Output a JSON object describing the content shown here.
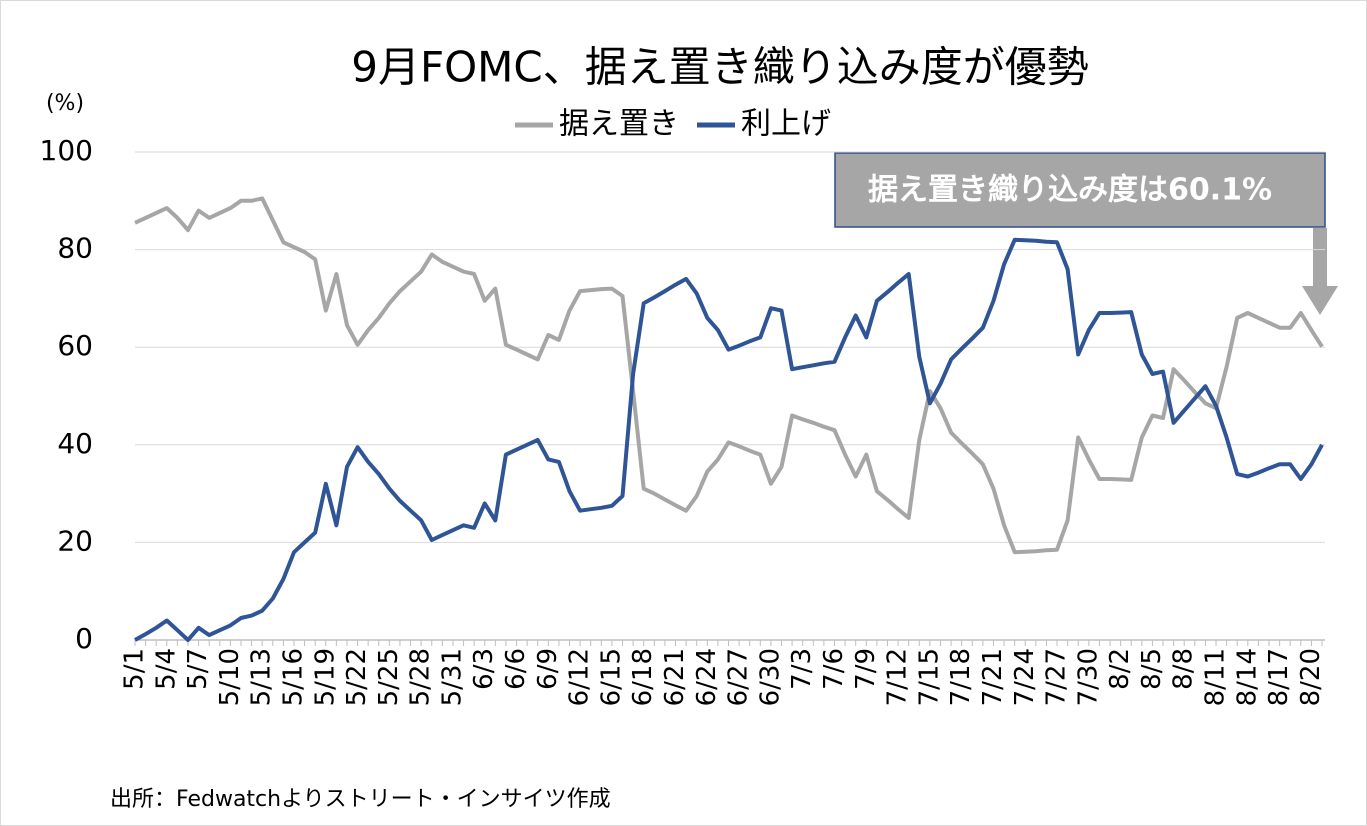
{
  "chart_data": {
    "type": "line",
    "title": "9月FOMC、据え置き織り込み度が優勢",
    "y_unit": "(%)",
    "annotation": "据え置き織り込み度は60.1%",
    "source": "出所：Fedwatchよりストリート・インサイツ作成",
    "categories": [
      "5/1",
      null,
      null,
      "5/4",
      null,
      null,
      "5/7",
      null,
      null,
      "5/10",
      null,
      null,
      "5/13",
      null,
      null,
      "5/16",
      null,
      null,
      "5/19",
      null,
      null,
      "5/22",
      null,
      null,
      "5/25",
      null,
      null,
      "5/28",
      null,
      null,
      "5/31",
      null,
      null,
      "6/3",
      null,
      null,
      "6/6",
      null,
      null,
      "6/9",
      null,
      null,
      "6/12",
      null,
      null,
      "6/15",
      null,
      null,
      "6/18",
      null,
      null,
      "6/21",
      null,
      null,
      "6/24",
      null,
      null,
      "6/27",
      null,
      null,
      "6/30",
      null,
      null,
      "7/3",
      null,
      null,
      "7/6",
      null,
      null,
      "7/9",
      null,
      null,
      "7/12",
      null,
      null,
      "7/15",
      null,
      null,
      "7/18",
      null,
      null,
      "7/21",
      null,
      null,
      "7/24",
      null,
      null,
      "7/27",
      null,
      null,
      "7/30",
      null,
      null,
      "8/2",
      null,
      null,
      "8/5",
      null,
      null,
      "8/8",
      null,
      null,
      "8/11",
      null,
      null,
      "8/14",
      null,
      null,
      "8/17",
      null,
      null,
      "8/20",
      null
    ],
    "series": [
      {
        "name": "据え置き",
        "color": "#a6a6a6",
        "values": [
          85.5,
          86.5,
          87.5,
          88.5,
          86.5,
          84,
          88,
          86.5,
          87.5,
          88.5,
          90,
          90,
          90.5,
          86,
          81.5,
          80.5,
          79.5,
          78,
          67.5,
          75,
          64.5,
          60.5,
          63.5,
          66,
          69,
          71.5,
          73.5,
          75.5,
          79,
          77.5,
          76.5,
          75.5,
          75,
          69.5,
          72,
          60.5,
          59.5,
          58.5,
          57.5,
          62.5,
          61.5,
          67.5,
          71.5,
          71.7,
          71.9,
          72,
          70.5,
          51,
          31,
          30,
          28.8,
          27.6,
          26.5,
          29.5,
          34.5,
          37,
          40.5,
          39.7,
          38.8,
          38,
          32,
          35.5,
          46,
          45.2,
          44.5,
          43.7,
          43,
          38,
          33.5,
          38,
          30.5,
          28.7,
          26.8,
          25,
          41,
          51,
          47.5,
          42.5,
          40.3,
          38.2,
          36,
          31,
          23.5,
          18,
          18.1,
          18.2,
          18.4,
          18.5,
          24.5,
          41.5,
          37,
          33,
          33,
          32.9,
          32.8,
          41.5,
          46,
          45.5,
          55.5,
          53.2,
          50.8,
          48.5,
          47.5,
          56,
          66,
          67,
          66,
          65,
          64,
          64,
          67,
          63.5,
          60.1
        ]
      },
      {
        "name": "利上げ",
        "color": "#2f5597",
        "values": [
          0,
          1.2,
          2.5,
          4,
          2,
          0,
          2.5,
          1,
          2,
          3,
          4.5,
          5,
          6,
          8.5,
          12.5,
          18,
          20,
          22,
          32,
          23.5,
          35.5,
          39.5,
          36.5,
          34,
          31,
          28.5,
          26.5,
          24.5,
          20.5,
          21.5,
          22.5,
          23.5,
          23,
          28,
          24.5,
          38,
          39,
          40,
          41,
          37,
          36.5,
          30.5,
          26.5,
          26.8,
          27.1,
          27.5,
          29.5,
          54.5,
          69,
          70.2,
          71.5,
          72.8,
          74,
          71,
          66,
          63.5,
          59.5,
          60.3,
          61.2,
          62,
          68,
          67.5,
          55.5,
          55.9,
          56.3,
          56.7,
          57,
          62,
          66.5,
          62,
          69.5,
          71.3,
          73.2,
          75,
          58,
          48.5,
          52.5,
          57.5,
          59.7,
          61.8,
          64,
          69.5,
          77,
          82,
          81.9,
          81.8,
          81.6,
          81.5,
          76,
          58.5,
          63.5,
          67,
          67,
          67.1,
          67.2,
          58.5,
          54.5,
          55,
          44.5,
          47,
          49.5,
          52,
          48,
          41.5,
          34,
          33.5,
          34.3,
          35.2,
          36,
          36,
          33,
          36,
          40
        ]
      }
    ],
    "ylim": [
      0,
      100
    ],
    "yticks": [
      0,
      20,
      40,
      60,
      80,
      100
    ],
    "grid": true
  }
}
